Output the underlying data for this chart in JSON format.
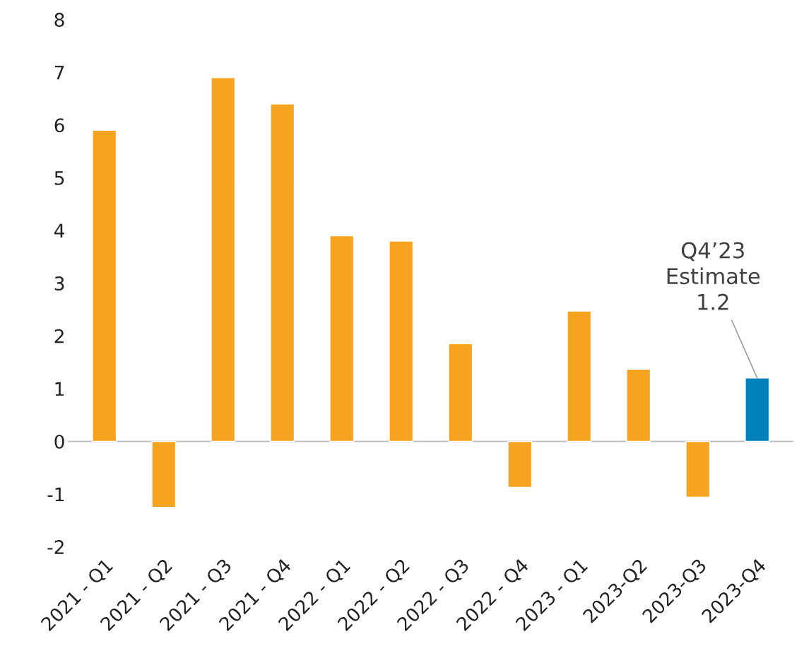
{
  "chart_data": {
    "type": "bar",
    "categories": [
      "2021 - Q1",
      "2021 - Q2",
      "2021 - Q3",
      "2021 - Q4",
      "2022 - Q1",
      "2022 - Q2",
      "2022 - Q3",
      "2022 - Q4",
      "2023 - Q1",
      "2023-Q2",
      "2023-Q3",
      "2023-Q4"
    ],
    "values": [
      5.9,
      -1.25,
      6.9,
      6.4,
      3.9,
      3.8,
      1.85,
      -0.87,
      2.47,
      1.37,
      -1.06,
      1.2
    ],
    "colors": [
      "#f6a420",
      "#f6a420",
      "#f6a420",
      "#f6a420",
      "#f6a420",
      "#f6a420",
      "#f6a420",
      "#f6a420",
      "#f6a420",
      "#f6a420",
      "#f6a420",
      "#0081ba"
    ],
    "ylim": [
      -2,
      8
    ],
    "yticks": [
      -2,
      -1,
      0,
      1,
      2,
      3,
      4,
      5,
      6,
      7,
      8
    ],
    "annotations": [
      {
        "text": "Q4’23\nEstimate\n1.2",
        "x": "2023-Q4",
        "y": 1.2
      }
    ],
    "legend": false
  }
}
